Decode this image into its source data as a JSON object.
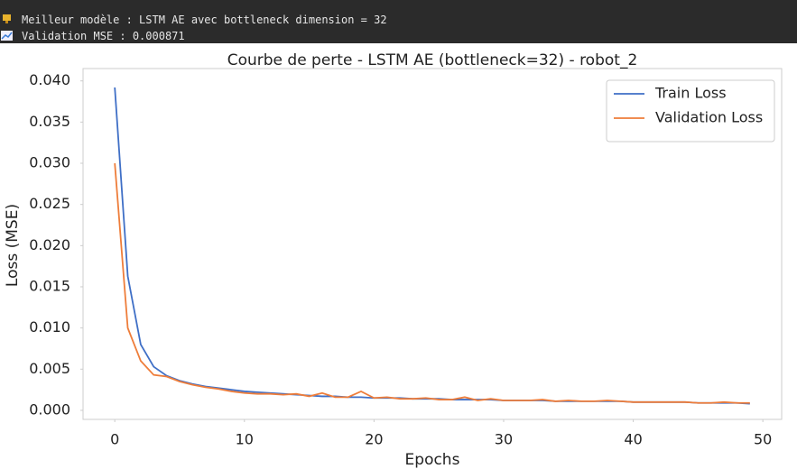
{
  "console": {
    "lines": [
      "Meilleur modèle : LSTM AE avec bottleneck dimension = 32",
      "Validation MSE : 0.000871"
    ]
  },
  "chart_data": {
    "type": "line",
    "title": "Courbe de perte - LSTM AE (bottleneck=32) - robot_2",
    "x_label": "Epochs",
    "y_label": "Loss (MSE)",
    "x": [
      0,
      1,
      2,
      3,
      4,
      5,
      6,
      7,
      8,
      9,
      10,
      11,
      12,
      13,
      14,
      15,
      16,
      17,
      18,
      19,
      20,
      21,
      22,
      23,
      24,
      25,
      26,
      27,
      28,
      29,
      30,
      31,
      32,
      33,
      34,
      35,
      36,
      37,
      38,
      39,
      40,
      41,
      42,
      43,
      44,
      45,
      46,
      47,
      48,
      49
    ],
    "series": [
      {
        "name": "Train Loss",
        "color": "#3f6fc6",
        "values": [
          0.0392,
          0.0163,
          0.008,
          0.0053,
          0.0042,
          0.0036,
          0.0032,
          0.0029,
          0.0027,
          0.0025,
          0.0023,
          0.0022,
          0.0021,
          0.002,
          0.0019,
          0.0018,
          0.0017,
          0.0017,
          0.0016,
          0.0016,
          0.0015,
          0.0015,
          0.0015,
          0.0014,
          0.0014,
          0.0014,
          0.0013,
          0.0013,
          0.0013,
          0.0013,
          0.0012,
          0.0012,
          0.0012,
          0.0012,
          0.0011,
          0.0011,
          0.0011,
          0.0011,
          0.0011,
          0.0011,
          0.001,
          0.001,
          0.001,
          0.001,
          0.001,
          0.0009,
          0.0009,
          0.0009,
          0.0009,
          0.0008
        ]
      },
      {
        "name": "Validation Loss",
        "color": "#ee7d3a",
        "values": [
          0.03,
          0.01,
          0.006,
          0.0043,
          0.0041,
          0.0035,
          0.0031,
          0.0028,
          0.0026,
          0.0023,
          0.0021,
          0.002,
          0.002,
          0.0019,
          0.002,
          0.0017,
          0.0021,
          0.0016,
          0.0016,
          0.0023,
          0.0015,
          0.0016,
          0.0014,
          0.0014,
          0.0015,
          0.0013,
          0.0013,
          0.0016,
          0.0012,
          0.0014,
          0.0012,
          0.0012,
          0.0012,
          0.0013,
          0.0011,
          0.0012,
          0.0011,
          0.0011,
          0.0012,
          0.0011,
          0.001,
          0.001,
          0.001,
          0.001,
          0.001,
          0.0009,
          0.0009,
          0.001,
          0.0009,
          0.0009
        ]
      }
    ],
    "xlim": [
      -2.45,
      51.45
    ],
    "xticks": [
      0,
      10,
      20,
      30,
      40,
      50
    ],
    "ylim": [
      -0.0011,
      0.0415
    ],
    "yticks": [
      {
        "value": 0,
        "label": "0.000"
      },
      {
        "value": 0.005,
        "label": "0.005"
      },
      {
        "value": 0.01,
        "label": "0.010"
      },
      {
        "value": 0.015,
        "label": "0.015"
      },
      {
        "value": 0.02,
        "label": "0.020"
      },
      {
        "value": 0.025,
        "label": "0.025"
      },
      {
        "value": 0.03,
        "label": "0.030"
      },
      {
        "value": 0.035,
        "label": "0.035"
      },
      {
        "value": 0.04,
        "label": "0.040"
      }
    ],
    "grid": false,
    "legend": "upper right"
  }
}
